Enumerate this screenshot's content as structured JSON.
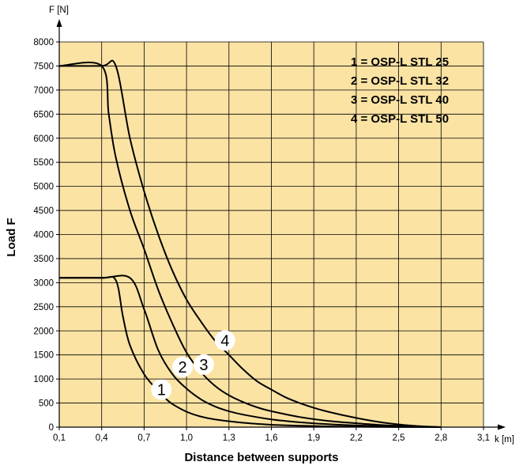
{
  "chart_data": {
    "type": "line",
    "x_unit": "k [m]",
    "y_unit": "F [N]",
    "xlabel": "Distance between supports",
    "ylabel": "Load F",
    "xlim": [
      0.1,
      3.1
    ],
    "ylim": [
      0,
      8000
    ],
    "x_ticks": [
      "0,1",
      "0,4",
      "0,7",
      "1,0",
      "1,3",
      "1,6",
      "1,9",
      "2,2",
      "2,5",
      "2,8",
      "3,1"
    ],
    "x_tick_values": [
      0.1,
      0.4,
      0.7,
      1.0,
      1.3,
      1.6,
      1.9,
      2.2,
      2.5,
      2.8,
      3.1
    ],
    "y_ticks": [
      "0",
      "500",
      "1000",
      "1500",
      "2000",
      "2500",
      "3000",
      "3500",
      "4000",
      "4500",
      "5000",
      "5500",
      "6000",
      "6500",
      "7000",
      "7500",
      "8000"
    ],
    "y_tick_values": [
      0,
      500,
      1000,
      1500,
      2000,
      2500,
      3000,
      3500,
      4000,
      4500,
      5000,
      5500,
      6000,
      6500,
      7000,
      7500,
      8000
    ],
    "grid": true,
    "background_color": "#fbe3a4",
    "line_color": "#000000",
    "legend_position": "top-right",
    "legend": [
      "1 = OSP-L STL 25",
      "2 = OSP-L STL 32",
      "3 = OSP-L STL 40",
      "4 = OSP-L STL 50"
    ],
    "series": [
      {
        "label": "1",
        "x": [
          0.1,
          0.4,
          0.5,
          0.55,
          0.6,
          0.7,
          0.8,
          0.85,
          0.9,
          1.0,
          1.1,
          1.2,
          1.4,
          1.6,
          1.8,
          2.0,
          2.2,
          2.4,
          2.6,
          2.8
        ],
        "y": [
          3100,
          3100,
          3050,
          2300,
          1700,
          1100,
          750,
          600,
          480,
          320,
          220,
          160,
          90,
          50,
          30,
          15,
          8,
          4,
          2,
          0
        ]
      },
      {
        "label": "2",
        "x": [
          0.1,
          0.4,
          0.6,
          0.7,
          0.8,
          0.9,
          1.0,
          1.1,
          1.2,
          1.3,
          1.4,
          1.6,
          1.8,
          2.0,
          2.2,
          2.4,
          2.6,
          2.8
        ],
        "y": [
          3100,
          3100,
          3100,
          2450,
          1600,
          1100,
          800,
          580,
          430,
          330,
          260,
          160,
          100,
          60,
          35,
          20,
          8,
          0
        ]
      },
      {
        "label": "3",
        "x": [
          0.1,
          0.4,
          0.45,
          0.5,
          0.6,
          0.7,
          0.8,
          0.9,
          1.0,
          1.1,
          1.2,
          1.3,
          1.4,
          1.5,
          1.6,
          1.8,
          2.0,
          2.2,
          2.4,
          2.6,
          2.8
        ],
        "y": [
          7500,
          7500,
          6500,
          5600,
          4500,
          3700,
          2850,
          2150,
          1550,
          1150,
          860,
          660,
          520,
          410,
          330,
          210,
          130,
          80,
          40,
          15,
          0
        ]
      },
      {
        "label": "4",
        "x": [
          0.1,
          0.4,
          0.5,
          0.6,
          0.7,
          0.8,
          0.9,
          1.0,
          1.1,
          1.2,
          1.3,
          1.4,
          1.5,
          1.6,
          1.7,
          1.8,
          1.9,
          2.0,
          2.2,
          2.4,
          2.6,
          2.8
        ],
        "y": [
          7500,
          7500,
          7500,
          6000,
          4900,
          4000,
          3250,
          2650,
          2200,
          1800,
          1500,
          1200,
          950,
          780,
          620,
          500,
          400,
          320,
          190,
          90,
          30,
          0
        ]
      }
    ]
  }
}
